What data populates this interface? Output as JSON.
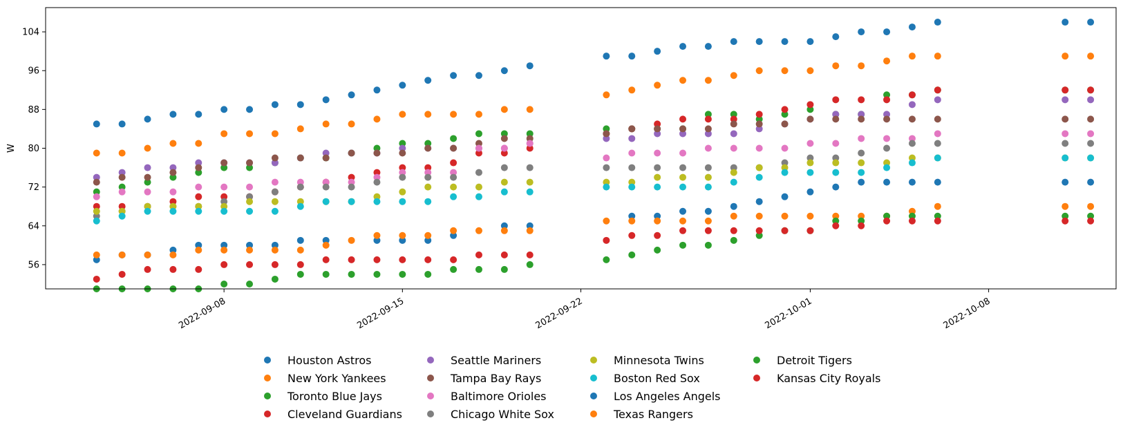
{
  "chart_data": {
    "type": "scatter",
    "ylabel": "W",
    "ylim": [
      51,
      109
    ],
    "xlim": [
      "2022-09-01",
      "2022-10-13"
    ],
    "yticks": [
      56,
      64,
      72,
      80,
      88,
      96,
      104
    ],
    "xticks": [
      "2022-09-08",
      "2022-09-15",
      "2022-09-22",
      "2022-10-01",
      "2022-10-08"
    ],
    "legend_position": "bottom-center",
    "grid": false,
    "dates": [
      "2022-09-03",
      "2022-09-04",
      "2022-09-05",
      "2022-09-06",
      "2022-09-07",
      "2022-09-08",
      "2022-09-09",
      "2022-09-10",
      "2022-09-11",
      "2022-09-12",
      "2022-09-13",
      "2022-09-14",
      "2022-09-15",
      "2022-09-16",
      "2022-09-17",
      "2022-09-18",
      "2022-09-19",
      "2022-09-20",
      "2022-09-23",
      "2022-09-24",
      "2022-09-25",
      "2022-09-26",
      "2022-09-27",
      "2022-09-28",
      "2022-09-29",
      "2022-09-30",
      "2022-10-01",
      "2022-10-02",
      "2022-10-03",
      "2022-10-04",
      "2022-10-05",
      "2022-10-06",
      "2022-10-11",
      "2022-10-12"
    ],
    "series": [
      {
        "name": "Houston Astros",
        "color": "#1f77b4",
        "values": [
          85,
          85,
          86,
          87,
          87,
          88,
          88,
          89,
          89,
          90,
          91,
          92,
          93,
          94,
          95,
          95,
          96,
          97,
          99,
          99,
          100,
          101,
          101,
          102,
          102,
          102,
          102,
          103,
          104,
          104,
          105,
          106,
          106,
          106
        ]
      },
      {
        "name": "New York Yankees",
        "color": "#ff7f0e",
        "values": [
          79,
          79,
          80,
          81,
          81,
          83,
          83,
          83,
          84,
          85,
          85,
          86,
          87,
          87,
          87,
          87,
          88,
          88,
          91,
          92,
          93,
          94,
          94,
          95,
          96,
          96,
          96,
          97,
          97,
          98,
          99,
          99,
          99,
          99
        ]
      },
      {
        "name": "Toronto Blue Jays",
        "color": "#2ca02c",
        "values": [
          71,
          72,
          73,
          74,
          75,
          76,
          76,
          77,
          78,
          78,
          79,
          80,
          81,
          81,
          82,
          83,
          83,
          83,
          84,
          84,
          84,
          84,
          87,
          87,
          86,
          87,
          88,
          87,
          87,
          91,
          91,
          92,
          92,
          92
        ]
      },
      {
        "name": "Cleveland Guardians",
        "color": "#d62728",
        "values": [
          68,
          68,
          68,
          69,
          70,
          70,
          70,
          71,
          72,
          73,
          74,
          75,
          76,
          76,
          77,
          79,
          79,
          80,
          83,
          84,
          85,
          86,
          86,
          86,
          87,
          88,
          89,
          90,
          90,
          90,
          91,
          92,
          92,
          92
        ]
      },
      {
        "name": "Seattle Mariners",
        "color": "#9467bd",
        "values": [
          74,
          75,
          76,
          76,
          77,
          77,
          77,
          77,
          78,
          79,
          79,
          79,
          80,
          80,
          80,
          80,
          80,
          81,
          82,
          82,
          83,
          83,
          83,
          83,
          84,
          85,
          86,
          87,
          87,
          87,
          89,
          90,
          90,
          90
        ]
      },
      {
        "name": "Tampa Bay Rays",
        "color": "#8c564b",
        "values": [
          73,
          74,
          74,
          75,
          76,
          77,
          77,
          78,
          78,
          78,
          79,
          79,
          79,
          80,
          80,
          81,
          82,
          82,
          83,
          84,
          84,
          84,
          84,
          85,
          85,
          85,
          86,
          86,
          86,
          86,
          86,
          86,
          86,
          86
        ]
      },
      {
        "name": "Baltimore Orioles",
        "color": "#e377c2",
        "values": [
          70,
          71,
          71,
          71,
          72,
          72,
          72,
          73,
          73,
          73,
          73,
          74,
          75,
          75,
          75,
          80,
          80,
          81,
          78,
          79,
          79,
          79,
          80,
          80,
          80,
          80,
          81,
          81,
          82,
          82,
          82,
          83,
          83,
          83
        ]
      },
      {
        "name": "Chicago White Sox",
        "color": "#7f7f7f",
        "values": [
          66,
          67,
          68,
          68,
          68,
          69,
          70,
          71,
          72,
          72,
          72,
          73,
          74,
          74,
          74,
          75,
          76,
          76,
          76,
          76,
          76,
          76,
          76,
          76,
          76,
          77,
          78,
          78,
          79,
          80,
          81,
          81,
          81,
          81
        ]
      },
      {
        "name": "Minnesota Twins",
        "color": "#bcbd22",
        "values": [
          67,
          67,
          68,
          68,
          68,
          68,
          69,
          69,
          69,
          69,
          69,
          70,
          71,
          72,
          72,
          72,
          73,
          73,
          73,
          73,
          74,
          74,
          74,
          75,
          76,
          76,
          77,
          77,
          77,
          77,
          78,
          78,
          78,
          78
        ]
      },
      {
        "name": "Boston Red Sox",
        "color": "#17becf",
        "values": [
          65,
          66,
          67,
          67,
          67,
          67,
          67,
          67,
          68,
          69,
          69,
          69,
          69,
          69,
          70,
          70,
          71,
          71,
          72,
          72,
          72,
          72,
          72,
          73,
          74,
          75,
          75,
          75,
          75,
          76,
          77,
          78,
          78,
          78
        ]
      },
      {
        "name": "Los Angeles Angels",
        "color": "#1f77b4",
        "values": [
          57,
          58,
          58,
          59,
          60,
          60,
          60,
          60,
          61,
          61,
          null,
          61,
          61,
          61,
          62,
          null,
          64,
          64,
          null,
          66,
          66,
          67,
          67,
          68,
          69,
          70,
          71,
          72,
          73,
          73,
          73,
          73,
          73,
          73
        ]
      },
      {
        "name": "Texas Rangers",
        "color": "#ff7f0e",
        "values": [
          58,
          58,
          58,
          58,
          59,
          59,
          59,
          59,
          59,
          60,
          61,
          62,
          62,
          62,
          63,
          63,
          63,
          63,
          65,
          65,
          65,
          65,
          65,
          66,
          66,
          66,
          66,
          66,
          66,
          66,
          67,
          68,
          68,
          68
        ]
      },
      {
        "name": "Detroit Tigers",
        "color": "#2ca02c",
        "values": [
          51,
          51,
          51,
          51,
          51,
          52,
          52,
          53,
          54,
          54,
          54,
          54,
          54,
          54,
          55,
          55,
          55,
          56,
          57,
          58,
          59,
          60,
          60,
          61,
          62,
          63,
          63,
          65,
          65,
          66,
          66,
          66,
          66,
          66
        ]
      },
      {
        "name": "Kansas City Royals",
        "color": "#d62728",
        "values": [
          53,
          54,
          55,
          55,
          55,
          56,
          56,
          56,
          56,
          57,
          57,
          57,
          57,
          57,
          57,
          58,
          58,
          58,
          61,
          62,
          62,
          63,
          63,
          63,
          63,
          63,
          63,
          64,
          64,
          65,
          65,
          65,
          65,
          65
        ]
      }
    ]
  }
}
